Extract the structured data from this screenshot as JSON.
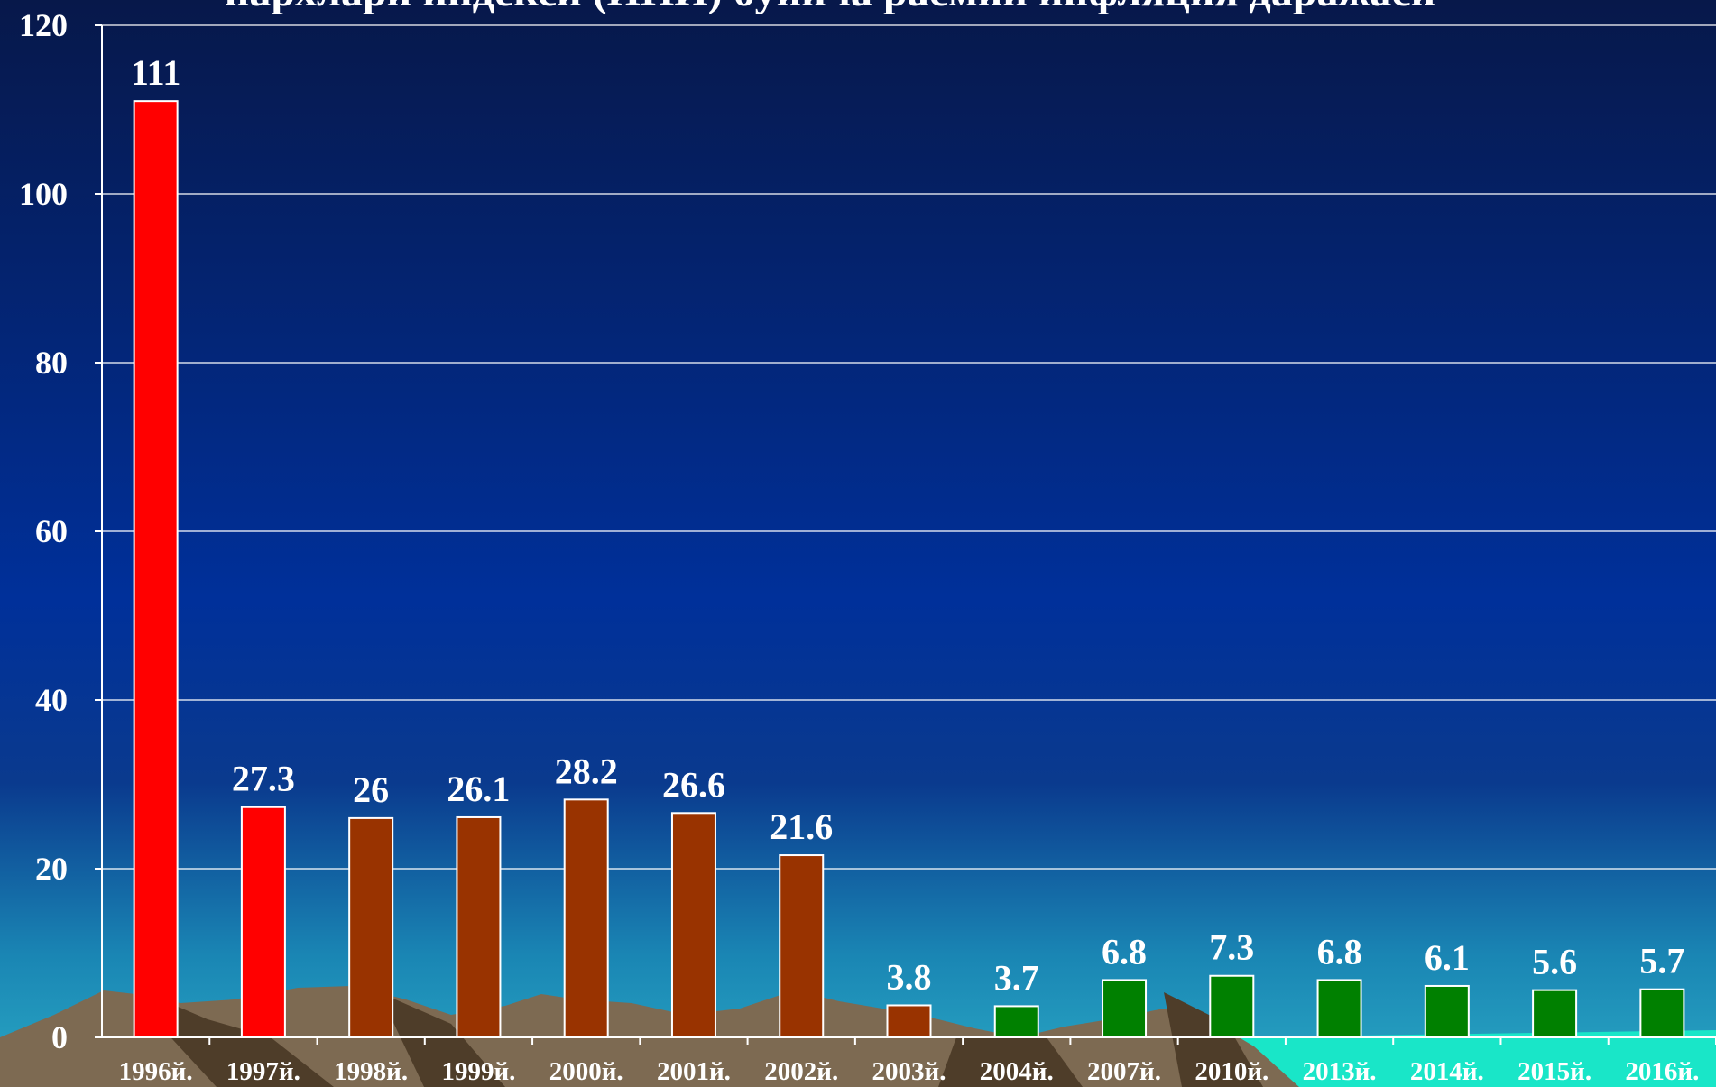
{
  "chart_data": {
    "type": "bar",
    "title": "нархлари индекси (ИНИ) бўйича расмий инфляция даражаси",
    "categories": [
      "1996й.",
      "1997й.",
      "1998й.",
      "1999й.",
      "2000й.",
      "2001й.",
      "2002й.",
      "2003й.",
      "2004й.",
      "2007й.",
      "2010й.",
      "2013й.",
      "2014й.",
      "2015й.",
      "2016й."
    ],
    "values": [
      111,
      27.3,
      26,
      26.1,
      28.2,
      26.6,
      21.6,
      3.8,
      3.7,
      6.8,
      7.3,
      6.8,
      6.1,
      5.6,
      5.7
    ],
    "colors": [
      "#ff0000",
      "#ff0000",
      "#993300",
      "#993300",
      "#993300",
      "#993300",
      "#993300",
      "#993300",
      "#008000",
      "#008000",
      "#008000",
      "#008000",
      "#008000",
      "#008000",
      "#008000"
    ],
    "ylim": [
      0,
      120
    ],
    "yticks": [
      0,
      20,
      40,
      60,
      80,
      100,
      120
    ],
    "grid": true
  }
}
